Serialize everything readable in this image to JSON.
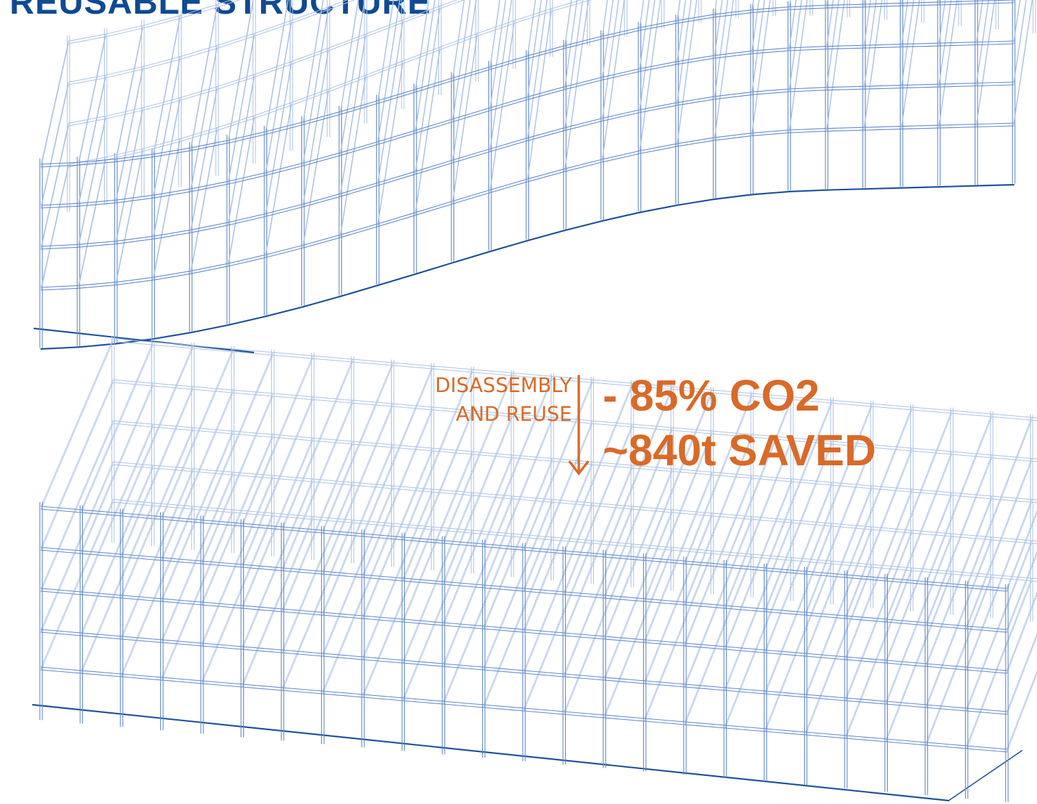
{
  "header": {
    "title": "REUSABLE STRUCTURE"
  },
  "annotation": {
    "process_line1": "DISASSEMBLY",
    "process_line2": "AND REUSE",
    "co2_reduction": "- 85% CO2",
    "co2_saved": "~840t SAVED"
  },
  "colors": {
    "title": "#0f4a94",
    "structure_line": "#5b86c8",
    "structure_light": "#a9c0e4",
    "ground_line": "#1d4f9c",
    "accent": "#d96a28"
  },
  "icons": {
    "direction": "arrow-down-icon"
  }
}
